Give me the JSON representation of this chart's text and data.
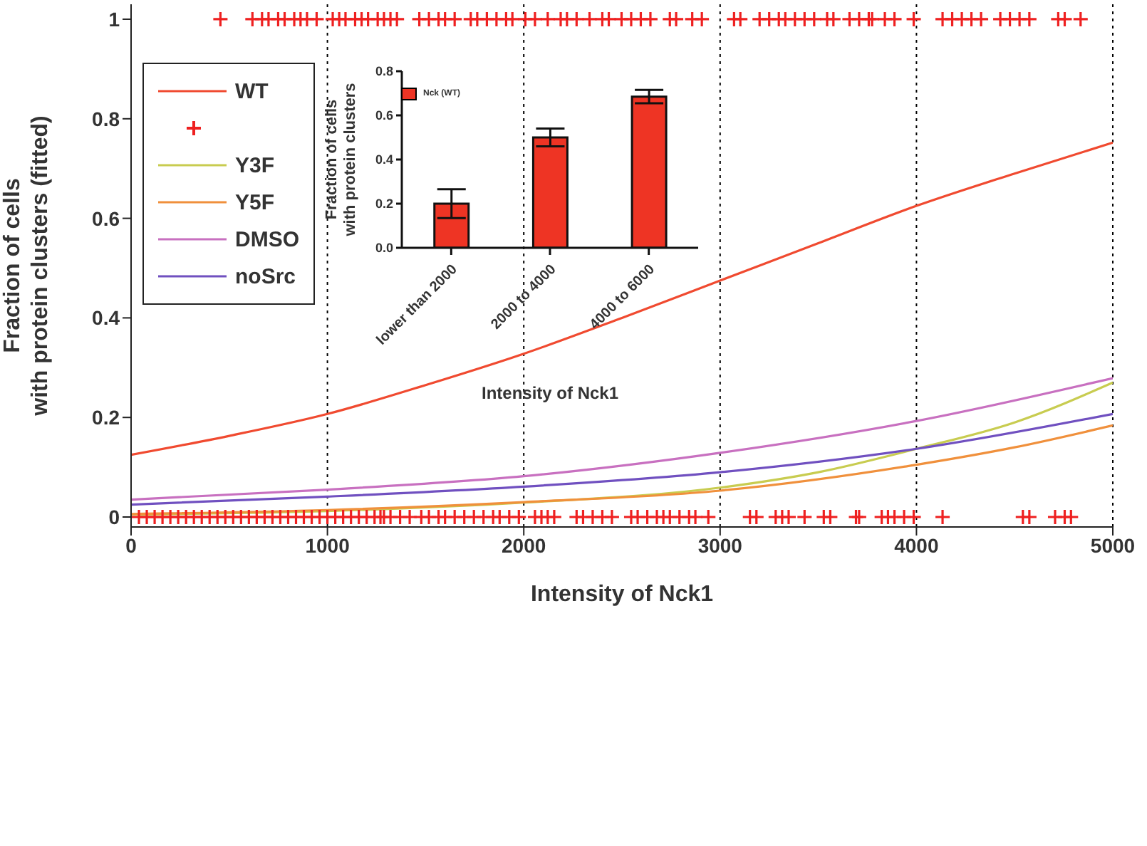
{
  "chart_data": [
    {
      "type": "line",
      "xlabel": "Intensity of Nck1",
      "ylabel": "Fraction of cells\nwith protein clusters (fitted)",
      "xlim": [
        0,
        5000
      ],
      "ylim": [
        -0.02,
        1.03
      ],
      "xticks": [
        0,
        1000,
        2000,
        3000,
        4000,
        5000
      ],
      "yticks": [
        0,
        0.2,
        0.4,
        0.6,
        0.8,
        1
      ],
      "grid": "x",
      "legend": "top left",
      "line_style": "solid",
      "series": [
        {
          "name": "WT",
          "color": "#f04a30",
          "marker": "none",
          "x": [
            0,
            500,
            1000,
            1500,
            2000,
            2500,
            3000,
            3500,
            4000,
            4500,
            5000
          ],
          "values": [
            0.125,
            0.163,
            0.207,
            0.265,
            0.328,
            0.4,
            0.475,
            0.55,
            0.625,
            0.69,
            0.752
          ]
        },
        {
          "type": "scatter",
          "color": "#ee2020",
          "marker": "cross",
          "x": [
            455,
            618,
            667,
            700,
            749,
            782,
            831,
            863,
            896,
            945,
            1027,
            1060,
            1092,
            1141,
            1174,
            1207,
            1256,
            1288,
            1321,
            1354,
            1468,
            1517,
            1566,
            1599,
            1648,
            1730,
            1763,
            1812,
            1861,
            1910,
            1942,
            2008,
            2057,
            2122,
            2188,
            2220,
            2269,
            2335,
            2400,
            2433,
            2498,
            2547,
            2596,
            2645,
            2744,
            2776,
            2858,
            2907,
            3071,
            3103,
            3201,
            3250,
            3299,
            3332,
            3381,
            3430,
            3479,
            3545,
            3577,
            3659,
            3708,
            3757,
            3774,
            3839,
            3888,
            3986,
            4133,
            4182,
            4231,
            4280,
            4329,
            4427,
            4476,
            4525,
            4575,
            4722,
            4755,
            4836,
            40,
            80,
            120,
            160,
            200,
            240,
            280,
            320,
            360,
            400,
            440,
            480,
            520,
            560,
            600,
            640,
            680,
            720,
            760,
            800,
            840,
            880,
            920,
            960,
            1000,
            1040,
            1080,
            1120,
            1160,
            1200,
            1240,
            1270,
            1288,
            1321,
            1370,
            1419,
            1478,
            1517,
            1566,
            1599,
            1648,
            1697,
            1746,
            1795,
            1844,
            1877,
            1926,
            1975,
            2057,
            2090,
            2122,
            2155,
            2269,
            2302,
            2351,
            2400,
            2449,
            2547,
            2580,
            2629,
            2678,
            2711,
            2744,
            2793,
            2842,
            2874,
            2940,
            3152,
            3185,
            3283,
            3316,
            3349,
            3430,
            3528,
            3561,
            3692,
            3708,
            3823,
            3855,
            3888,
            3937,
            3986,
            4133,
            4542,
            4575,
            4706,
            4755,
            4787
          ],
          "values": [
            1,
            1,
            1,
            1,
            1,
            1,
            1,
            1,
            1,
            1,
            1,
            1,
            1,
            1,
            1,
            1,
            1,
            1,
            1,
            1,
            1,
            1,
            1,
            1,
            1,
            1,
            1,
            1,
            1,
            1,
            1,
            1,
            1,
            1,
            1,
            1,
            1,
            1,
            1,
            1,
            1,
            1,
            1,
            1,
            1,
            1,
            1,
            1,
            1,
            1,
            1,
            1,
            1,
            1,
            1,
            1,
            1,
            1,
            1,
            1,
            1,
            1,
            1,
            1,
            1,
            1,
            1,
            1,
            1,
            1,
            1,
            1,
            1,
            1,
            1,
            1,
            1,
            1,
            0,
            0,
            0,
            0,
            0,
            0,
            0,
            0,
            0,
            0,
            0,
            0,
            0,
            0,
            0,
            0,
            0,
            0,
            0,
            0,
            0,
            0,
            0,
            0,
            0,
            0,
            0,
            0,
            0,
            0,
            0,
            0,
            0,
            0,
            0,
            0,
            0,
            0,
            0,
            0,
            0,
            0,
            0,
            0,
            0,
            0,
            0,
            0,
            0,
            0,
            0,
            0,
            0,
            0,
            0,
            0,
            0,
            0,
            0,
            0,
            0,
            0,
            0,
            0,
            0,
            0,
            0,
            0,
            0,
            0,
            0,
            0,
            0,
            0,
            0,
            0,
            0,
            0,
            0,
            0,
            0,
            0,
            0,
            0,
            0,
            0,
            0,
            0
          ]
        },
        {
          "name": "Y3F",
          "color": "#c8cc50",
          "marker": "none",
          "x": [
            0,
            1000,
            2000,
            3000,
            3500,
            4000,
            4500,
            5000
          ],
          "values": [
            0.005,
            0.012,
            0.029,
            0.059,
            0.09,
            0.137,
            0.19,
            0.27
          ]
        },
        {
          "name": "Y5F",
          "color": "#f0903c",
          "marker": "none",
          "x": [
            0,
            1000,
            2000,
            3000,
            4000,
            4500,
            5000
          ],
          "values": [
            0.006,
            0.014,
            0.03,
            0.053,
            0.105,
            0.14,
            0.184
          ]
        },
        {
          "name": "DMSO",
          "color": "#c870c0",
          "marker": "none",
          "x": [
            0,
            1000,
            2000,
            3000,
            4000,
            5000
          ],
          "values": [
            0.035,
            0.055,
            0.082,
            0.129,
            0.193,
            0.279
          ]
        },
        {
          "name": "noSrc",
          "color": "#7050c0",
          "marker": "none",
          "x": [
            0,
            1000,
            2000,
            3000,
            4000,
            5000
          ],
          "values": [
            0.025,
            0.041,
            0.061,
            0.09,
            0.137,
            0.207
          ]
        }
      ]
    },
    {
      "type": "bar",
      "xlabel": "Intensity of Nck1",
      "ylabel": "Fraction of cells\nwith protein clusters",
      "categories": [
        "lower than 2000",
        "2000 to 4000",
        "4000 to 6000"
      ],
      "ylim": [
        0,
        0.8
      ],
      "yticks": [
        {
          "value": 0,
          "label": "0.0"
        },
        0.2,
        0.4,
        0.6,
        0.8
      ],
      "legend": "top left",
      "grid": false,
      "series": [
        {
          "name": "Nck (WT)",
          "color": "#ee3424",
          "values": [
            0.2,
            0.5,
            0.685
          ],
          "errors": [
            0.065,
            0.04,
            0.03
          ]
        }
      ]
    }
  ]
}
